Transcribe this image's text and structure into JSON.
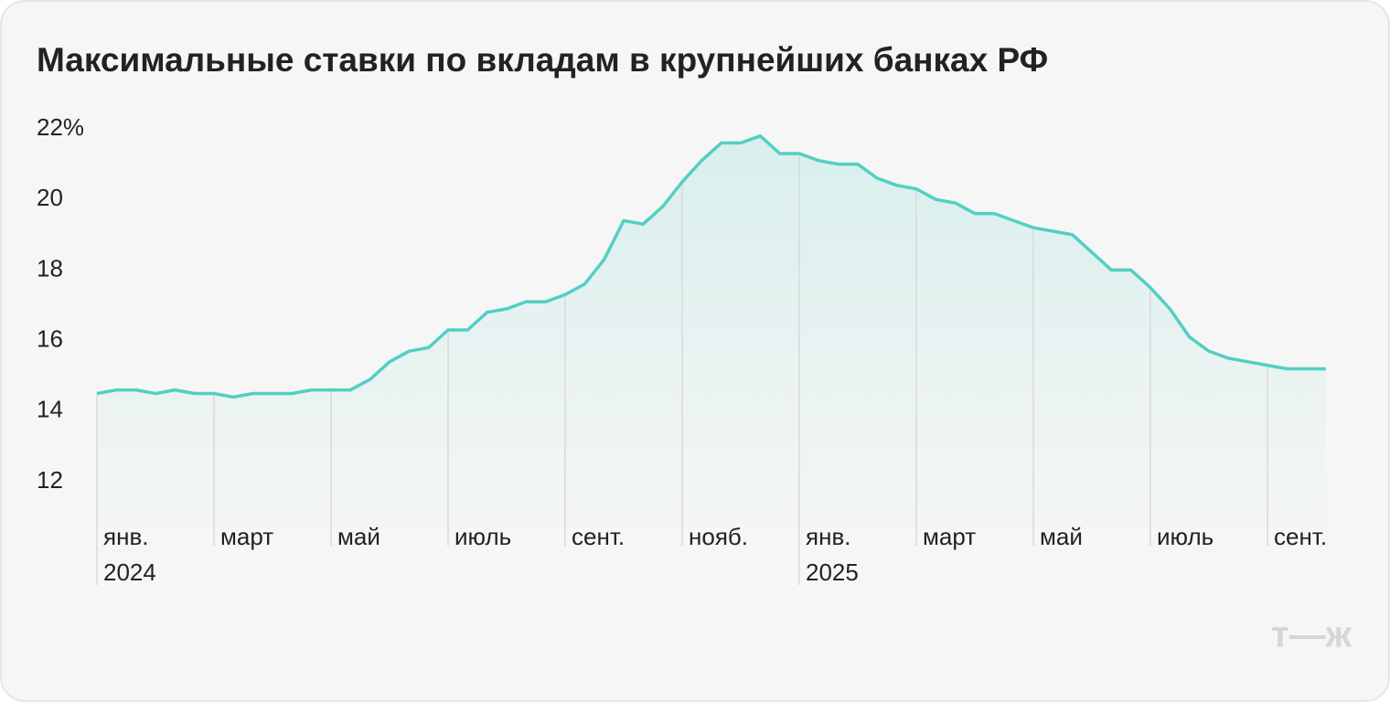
{
  "chart_data": {
    "type": "line",
    "title": "Максимальные ставки по вкладам в крупнейших банках РФ",
    "categories": [
      "янв.",
      null,
      null,
      null,
      null,
      null,
      "март",
      null,
      null,
      null,
      null,
      null,
      "май",
      null,
      null,
      null,
      null,
      null,
      "июль",
      null,
      null,
      null,
      null,
      null,
      "сент.",
      null,
      null,
      null,
      null,
      null,
      "нояб.",
      null,
      null,
      null,
      null,
      null,
      "янв.",
      null,
      null,
      null,
      null,
      null,
      "март",
      null,
      null,
      null,
      null,
      null,
      "май",
      null,
      null,
      null,
      null,
      null,
      "июль",
      null,
      null,
      null,
      null,
      null,
      "сент.",
      null,
      null,
      null
    ],
    "years": [
      "2024",
      null,
      null,
      null,
      null,
      null,
      null,
      null,
      null,
      null,
      null,
      null,
      null,
      null,
      null,
      null,
      null,
      null,
      null,
      null,
      null,
      null,
      null,
      null,
      null,
      null,
      null,
      null,
      null,
      null,
      null,
      null,
      null,
      null,
      null,
      null,
      "2025",
      null,
      null,
      null,
      null,
      null,
      null,
      null,
      null,
      null,
      null,
      null,
      null,
      null,
      null,
      null,
      null,
      null,
      null,
      null,
      null,
      null,
      null,
      null,
      null,
      null,
      null,
      null
    ],
    "values": [
      14.5,
      14.6,
      14.6,
      14.5,
      14.6,
      14.5,
      14.5,
      14.4,
      14.5,
      14.5,
      14.5,
      14.6,
      14.6,
      14.6,
      14.9,
      15.4,
      15.7,
      15.8,
      16.3,
      16.3,
      16.8,
      16.9,
      17.1,
      17.1,
      17.3,
      17.6,
      18.3,
      19.4,
      19.3,
      19.8,
      20.5,
      21.1,
      21.6,
      21.6,
      21.8,
      21.3,
      21.3,
      21.1,
      21.0,
      21.0,
      20.6,
      20.4,
      20.3,
      20.0,
      19.9,
      19.6,
      19.6,
      19.4,
      19.2,
      19.1,
      19.0,
      18.5,
      18.0,
      18.0,
      17.5,
      16.9,
      16.1,
      15.7,
      15.5,
      15.4,
      15.3,
      15.2,
      15.2,
      15.2
    ],
    "color": "#52cfc3",
    "ylim": [
      12,
      22
    ],
    "yticks": [
      12,
      14,
      16,
      18,
      20,
      {
        "value": 22,
        "label": "22%"
      }
    ],
    "logo": "т—ж"
  }
}
